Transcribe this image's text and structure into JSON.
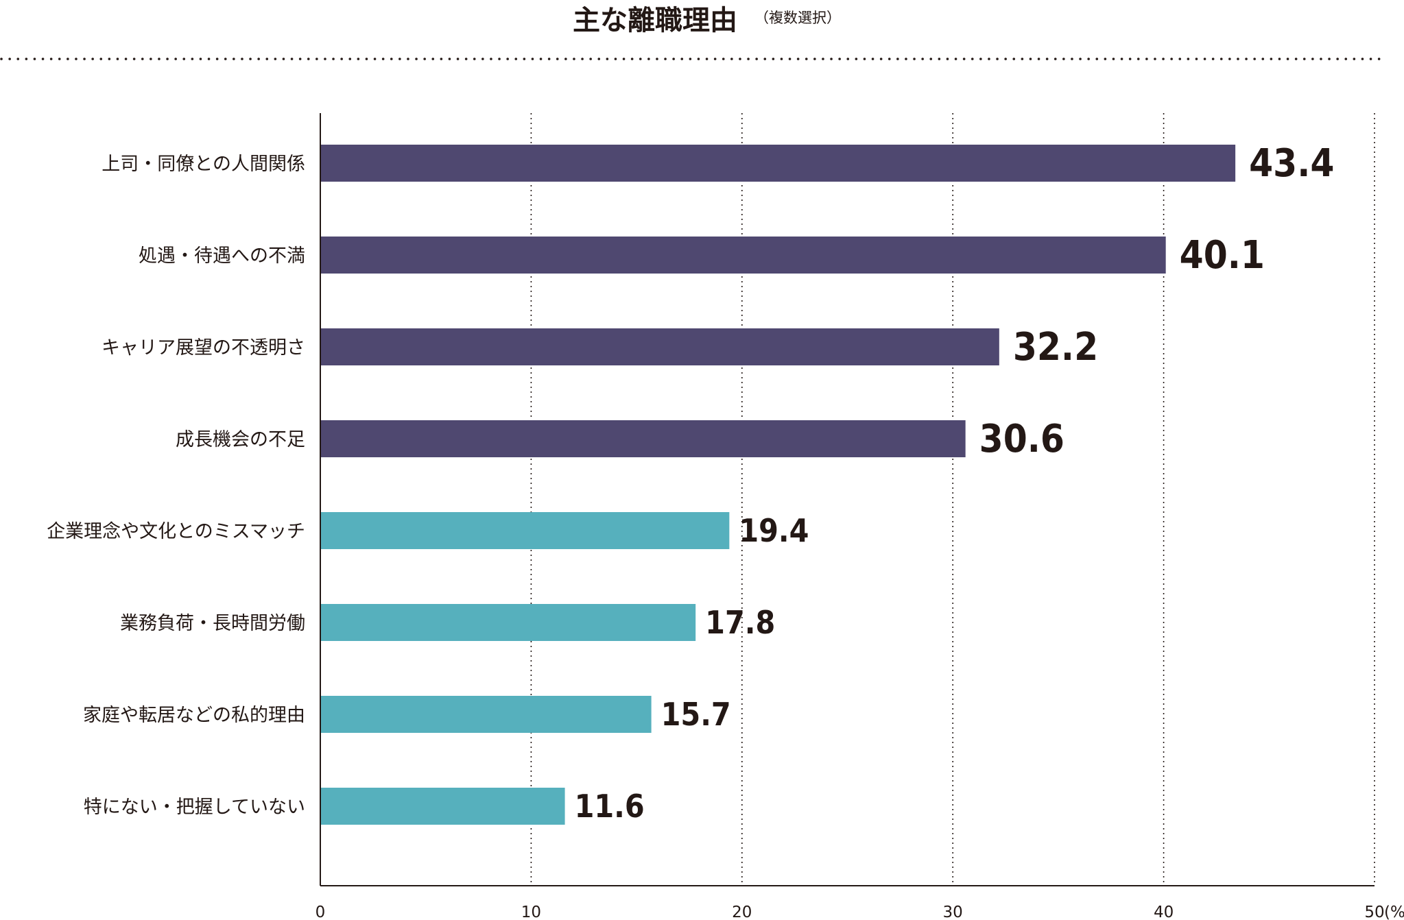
{
  "chart_data": {
    "type": "bar",
    "orientation": "horizontal",
    "title": "主な離職理由",
    "subtitle": "（複数選択）",
    "categories": [
      "上司・同僚との人間関係",
      "処遇・待遇への不満",
      "キャリア展望の不透明さ",
      "成長機会の不足",
      "企業理念や文化とのミスマッチ",
      "業務負荷・長時間労働",
      "家庭や転居などの私的理由",
      "特にない・把握していない"
    ],
    "values": [
      43.4,
      40.1,
      32.2,
      30.6,
      19.4,
      17.8,
      15.7,
      11.6
    ],
    "value_labels": [
      "43.4",
      "40.1",
      "32.2",
      "30.6",
      "19.4",
      "17.8",
      "15.7",
      "11.6"
    ],
    "highlighted": [
      true,
      true,
      true,
      true,
      false,
      false,
      false,
      false
    ],
    "xlim": [
      0,
      50
    ],
    "xticks": [
      0,
      10,
      20,
      30,
      40,
      50
    ],
    "xtick_labels": [
      "0",
      "10",
      "20",
      "30",
      "40",
      "50"
    ],
    "x_unit": "(%)",
    "xlabel": "",
    "ylabel": "",
    "grid": "vertical-dotted",
    "colors": {
      "highlight_bar": "#4f4870",
      "normal_bar": "#56b0bd",
      "highlight_value": "#b5141c",
      "normal_value": "#231815",
      "text": "#231815",
      "axis": "#231815",
      "grid": "#231815"
    }
  }
}
